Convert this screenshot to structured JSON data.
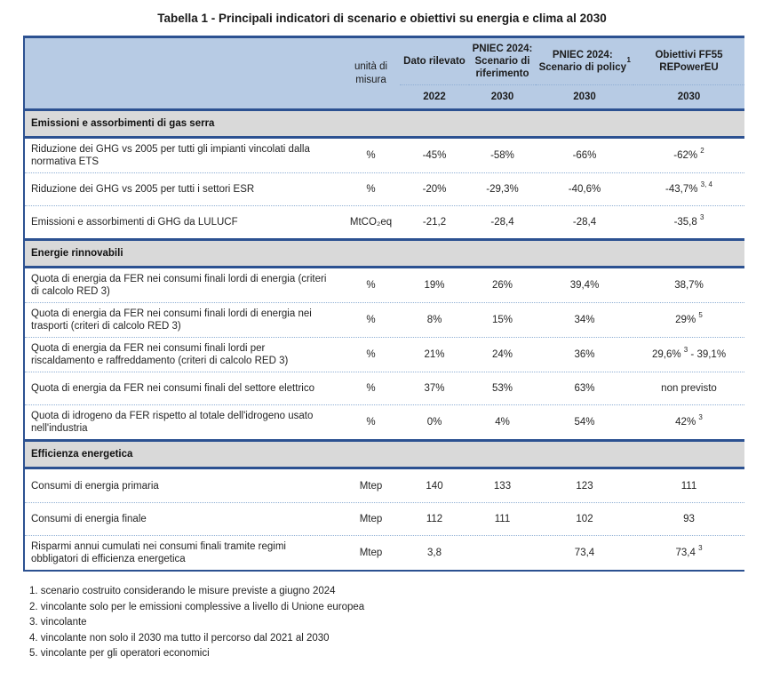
{
  "title": "Tabella 1 - Principali indicatori di scenario e obiettivi su energia e clima al 2030",
  "table": {
    "columns": [
      {
        "label": "",
        "year": ""
      },
      {
        "label": "unità di misura",
        "year": ""
      },
      {
        "label": "Dato rilevato",
        "year": "2022"
      },
      {
        "label": "PNIEC 2024: Scenario di riferimento",
        "year": "2030"
      },
      {
        "label": "PNIEC 2024: Scenario di policy ^1^",
        "year": "2030"
      },
      {
        "label": "Obiettivi FF55 REPowerEU",
        "year": "2030"
      }
    ],
    "sections": [
      {
        "header": "Emissioni e assorbimenti di gas serra",
        "rows": [
          {
            "label": "Riduzione dei GHG vs 2005 per tutti gli impianti vincolati dalla normativa ETS",
            "unit": "%",
            "values": [
              "-45%",
              "-58%",
              "-66%",
              "-62% ^2^"
            ]
          },
          {
            "label": "Riduzione dei GHG vs 2005 per tutti i settori ESR",
            "unit": "%",
            "values": [
              "-20%",
              "-29,3%",
              "-40,6%",
              "-43,7% ^3, 4^"
            ]
          },
          {
            "label": "Emissioni e assorbimenti di GHG da LULUCF",
            "unit": "MtCO₂eq",
            "values": [
              "-21,2",
              "-28,4",
              "-28,4",
              "-35,8 ^3^"
            ]
          }
        ]
      },
      {
        "header": "Energie rinnovabili",
        "rows": [
          {
            "label": "Quota di energia da FER nei consumi finali lordi di energia (criteri di calcolo RED 3)",
            "unit": "%",
            "values": [
              "19%",
              "26%",
              "39,4%",
              "38,7%"
            ]
          },
          {
            "label": "Quota di energia da FER nei consumi finali lordi di energia nei trasporti (criteri di calcolo RED 3)",
            "unit": "%",
            "values": [
              "8%",
              "15%",
              "34%",
              "29% ^5^"
            ]
          },
          {
            "label": "Quota di energia da FER nei consumi finali lordi per riscaldamento e raffreddamento (criteri di calcolo RED 3)",
            "unit": "%",
            "values": [
              "21%",
              "24%",
              "36%",
              "29,6% ^3^ - 39,1%"
            ]
          },
          {
            "label": "Quota di energia da FER nei consumi finali del settore elettrico",
            "unit": "%",
            "values": [
              "37%",
              "53%",
              "63%",
              "non previsto"
            ]
          },
          {
            "label": "Quota di idrogeno da FER rispetto al totale dell'idrogeno usato nell'industria",
            "unit": "%",
            "values": [
              "0%",
              "4%",
              "54%",
              "42% ^3^"
            ]
          }
        ]
      },
      {
        "header": "Efficienza energetica",
        "rows": [
          {
            "label": "Consumi di energia primaria",
            "unit": "Mtep",
            "values": [
              "140",
              "133",
              "123",
              "111"
            ]
          },
          {
            "label": "Consumi di energia finale",
            "unit": "Mtep",
            "values": [
              "112",
              "111",
              "102",
              "93"
            ]
          },
          {
            "label": "Risparmi annui cumulati nei consumi finali tramite regimi obbligatori di efficienza energetica",
            "unit": "Mtep",
            "values": [
              "3,8",
              "",
              "73,4",
              "73,4 ^3^"
            ]
          }
        ]
      }
    ]
  },
  "footnotes": [
    "1. scenario costruito considerando le misure previste a giugno 2024",
    "2. vincolante solo per le emissioni complessive a livello di Unione europea",
    "3. vincolante",
    "4. vincolante non solo il 2030 ma tutto il percorso dal 2021 al 2030",
    "5. vincolante per gli operatori economici"
  ],
  "colors": {
    "header_fill": "#b7cbe4",
    "section_fill": "#d9d9d9",
    "border_navy": "#2c5191",
    "dotted_separator": "#8fafd4",
    "text": "#242424"
  }
}
